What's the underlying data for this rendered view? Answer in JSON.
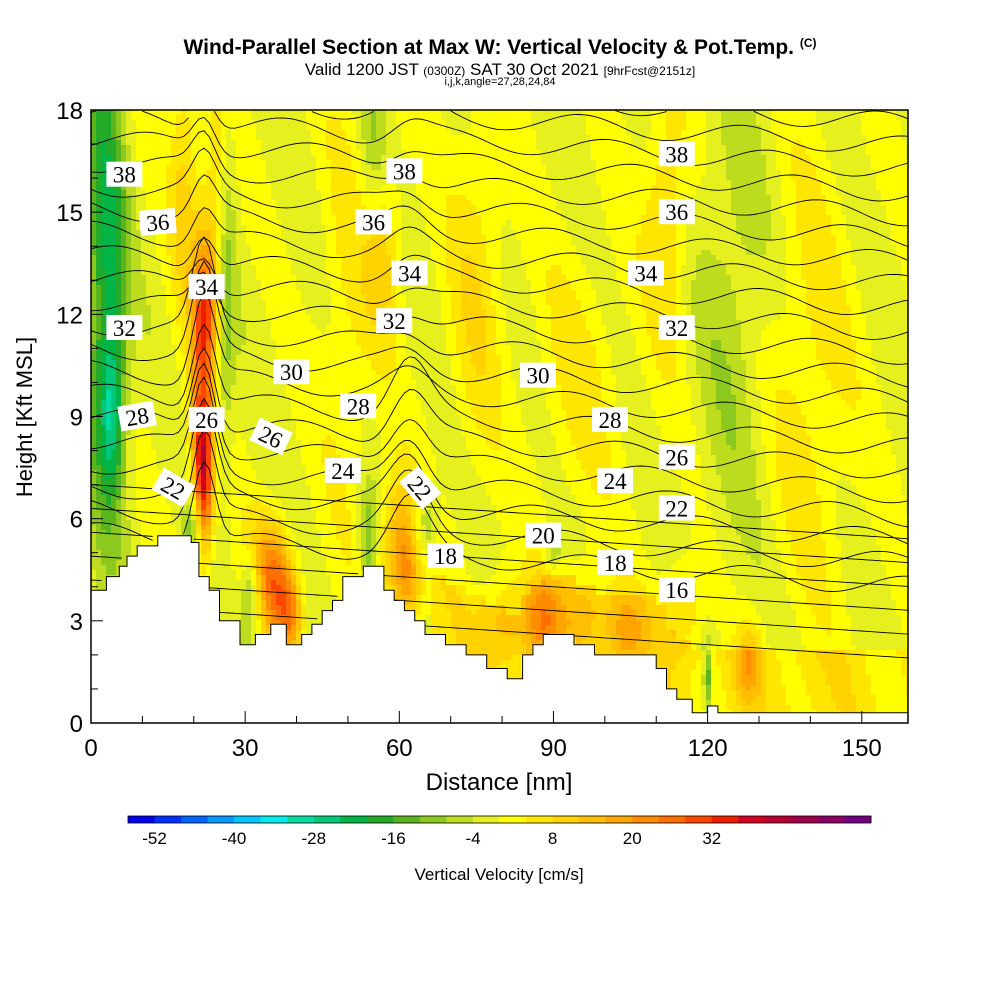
{
  "title": "Wind-Parallel Section at Max W: Vertical Velocity & Pot.Temp.",
  "copyright": "(C)",
  "subtitle": {
    "valid": "Valid 1200 JST",
    "utc": "(0300Z)",
    "date": "SAT 30 Oct 2021",
    "forecast": "[9hrFcst@2151z]"
  },
  "params": "i,j,k,angle=27,28,24,84",
  "chart_data": {
    "type": "heatmap",
    "xlabel": "Distance [nm]",
    "ylabel": "Height [Kft MSL]",
    "xlim": [
      0,
      159
    ],
    "ylim": [
      0,
      18
    ],
    "xticks": [
      0,
      30,
      60,
      90,
      120,
      150
    ],
    "yticks": [
      0,
      3,
      6,
      9,
      12,
      15,
      18
    ],
    "colorbar": {
      "label": "Vertical Velocity [cm/s]",
      "ticks": [
        "-52",
        "-40",
        "-28",
        "-16",
        "-4",
        "8",
        "20",
        "32"
      ],
      "min": -56,
      "step": 4,
      "colors": [
        "#0000ee",
        "#0030ff",
        "#0066ff",
        "#0099ff",
        "#00c8ff",
        "#00ecec",
        "#00dca0",
        "#00c878",
        "#00b446",
        "#23aa28",
        "#5ab41e",
        "#8cc81e",
        "#bedc1e",
        "#e6f01e",
        "#ffff00",
        "#ffe600",
        "#ffd200",
        "#ffbe00",
        "#ffa500",
        "#ff8c00",
        "#ff6e00",
        "#ff4600",
        "#ee1e00",
        "#d2001e",
        "#b40032",
        "#a0004b",
        "#8c0064",
        "#700080"
      ]
    },
    "theta_labels": [
      {
        "text": "38",
        "x": 6.5,
        "y": 16.1,
        "angle": 0
      },
      {
        "text": "38",
        "x": 61,
        "y": 16.2,
        "angle": 0
      },
      {
        "text": "38",
        "x": 114,
        "y": 16.7,
        "angle": 0
      },
      {
        "text": "36",
        "x": 13,
        "y": 14.7,
        "angle": -5
      },
      {
        "text": "36",
        "x": 55,
        "y": 14.7,
        "angle": 0
      },
      {
        "text": "36",
        "x": 114,
        "y": 15.0,
        "angle": 0
      },
      {
        "text": "34",
        "x": 22.5,
        "y": 12.8,
        "angle": 0
      },
      {
        "text": "34",
        "x": 62,
        "y": 13.2,
        "angle": 0
      },
      {
        "text": "34",
        "x": 108,
        "y": 13.2,
        "angle": 0
      },
      {
        "text": "32",
        "x": 6.5,
        "y": 11.6,
        "angle": 0
      },
      {
        "text": "32",
        "x": 59,
        "y": 11.8,
        "angle": 0
      },
      {
        "text": "32",
        "x": 114,
        "y": 11.6,
        "angle": 0
      },
      {
        "text": "30",
        "x": 39,
        "y": 10.3,
        "angle": 0
      },
      {
        "text": "30",
        "x": 87,
        "y": 10.2,
        "angle": 0
      },
      {
        "text": "28",
        "x": 9,
        "y": 9.0,
        "angle": -10
      },
      {
        "text": "28",
        "x": 52,
        "y": 9.3,
        "angle": 0
      },
      {
        "text": "28",
        "x": 101,
        "y": 8.9,
        "angle": 0
      },
      {
        "text": "26",
        "x": 22.5,
        "y": 8.9,
        "angle": 0
      },
      {
        "text": "26",
        "x": 35,
        "y": 8.4,
        "angle": 25
      },
      {
        "text": "26",
        "x": 114,
        "y": 7.8,
        "angle": 0
      },
      {
        "text": "24",
        "x": 49,
        "y": 7.4,
        "angle": 0
      },
      {
        "text": "24",
        "x": 102,
        "y": 7.1,
        "angle": 0
      },
      {
        "text": "22",
        "x": 16,
        "y": 6.9,
        "angle": 30
      },
      {
        "text": "22",
        "x": 64,
        "y": 6.9,
        "angle": 50
      },
      {
        "text": "22",
        "x": 114,
        "y": 6.3,
        "angle": 0
      },
      {
        "text": "20",
        "x": 88,
        "y": 5.5,
        "angle": 0
      },
      {
        "text": "18",
        "x": 69,
        "y": 4.9,
        "angle": 0
      },
      {
        "text": "18",
        "x": 102,
        "y": 4.7,
        "angle": 0
      },
      {
        "text": "16",
        "x": 114,
        "y": 3.9,
        "angle": 0
      }
    ]
  }
}
